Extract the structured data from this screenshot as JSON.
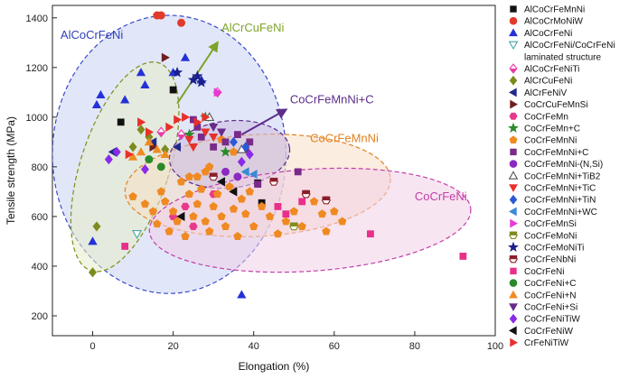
{
  "chart_data": {
    "type": "scatter",
    "xlabel": "Elongation (%)",
    "ylabel": "Tensile strength (MPa)",
    "xlim": [
      -10,
      100
    ],
    "ylim": [
      120,
      1450
    ],
    "xticks": [
      0,
      20,
      40,
      60,
      80,
      100
    ],
    "yticks": [
      200,
      400,
      600,
      800,
      1000,
      1200,
      1400
    ],
    "regions": [
      {
        "name": "AlCoCrFeNi",
        "label": "AlCoCrFeNi",
        "color": "#3b49c9",
        "fill": "#c9d4f2",
        "cx": 19,
        "cy": 850,
        "rx": 29,
        "ry": 560,
        "angle": 0
      },
      {
        "name": "AlCrCuFeNi",
        "label": "AlCrCuFeNi",
        "color": "#7b8f1a",
        "fill": "#e8ecc8",
        "cx": 8,
        "cy": 800,
        "rx": 11,
        "ry": 440,
        "angle": 18
      },
      {
        "name": "CoCrFeMnNi",
        "label": "CoCrFeMnNi",
        "color": "#e2801f",
        "fill": "#f8dfc4",
        "cx": 41,
        "cy": 725,
        "rx": 33,
        "ry": 205,
        "angle": -3
      },
      {
        "name": "CoCrFeMnNi+C",
        "label": "CoCrFeMnNi+C",
        "color": "#5d2c8a",
        "fill": "#cdbbe0",
        "cx": 34,
        "cy": 850,
        "rx": 15,
        "ry": 135,
        "angle": -6
      },
      {
        "name": "CoCrFeNi",
        "label": "CoCrFeNi",
        "color": "#c23fa8",
        "fill": "#f2cfe7",
        "cx": 54,
        "cy": 585,
        "rx": 40,
        "ry": 205,
        "angle": -4
      }
    ],
    "arrows": [
      {
        "label": "AlCrCuFeNi",
        "from": [
          21,
          1055
        ],
        "to": [
          31,
          1300
        ],
        "color": "#7ea32a"
      },
      {
        "label": "CoCrFeMnNi+C",
        "from": [
          37,
          930
        ],
        "to": [
          48,
          1030
        ],
        "color": "#5d2c8a"
      }
    ],
    "region_labels": [
      {
        "text": "AlCoCrFeNi",
        "x": -8,
        "y": 1315,
        "color": "#2f3fb8"
      },
      {
        "text": "AlCrCuFeNi",
        "x": 32,
        "y": 1345,
        "color": "#7ea32a"
      },
      {
        "text": "CoCrFeMnNi+C",
        "x": 49,
        "y": 1055,
        "color": "#5d2c8a"
      },
      {
        "text": "CoCrFeMnNi",
        "x": 54,
        "y": 900,
        "color": "#e2801f"
      },
      {
        "text": "CoCrFeNi",
        "x": 80,
        "y": 665,
        "color": "#c23fa8"
      }
    ],
    "series": [
      {
        "name": "AlCoCrFeMnNi",
        "marker": "square",
        "color": "#111111",
        "points": [
          [
            7,
            980
          ],
          [
            20,
            1110
          ],
          [
            41,
            735
          ],
          [
            42,
            655
          ]
        ]
      },
      {
        "name": "AlCoCrMoNiW",
        "marker": "circle",
        "color": "#e23a2a",
        "points": [
          [
            16,
            1410
          ],
          [
            17,
            1410
          ],
          [
            22,
            1380
          ]
        ]
      },
      {
        "name": "AlCoCrFeNi",
        "marker": "triangle-up",
        "color": "#2431d6",
        "points": [
          [
            0,
            500
          ],
          [
            1,
            1050
          ],
          [
            8,
            1070
          ],
          [
            12,
            1180
          ],
          [
            23,
            1240
          ],
          [
            20,
            1180
          ],
          [
            37,
            285
          ],
          [
            13,
            1130
          ],
          [
            2,
            1090
          ],
          [
            27,
            1150
          ]
        ]
      },
      {
        "name": "AlCoCrFeNi/CoCrFeNi laminated structure",
        "marker": "triangle-down-open",
        "color": "#49a6a6",
        "points": [
          [
            11,
            530
          ]
        ]
      },
      {
        "name": "AlCoCrFeNiTi",
        "marker": "diamond-half",
        "color": "#e83aa8",
        "points": [
          [
            31,
            1100
          ],
          [
            17,
            940
          ],
          [
            22,
            930
          ]
        ]
      },
      {
        "name": "AlCrCuFeNi",
        "marker": "diamond",
        "color": "#7e8a1e",
        "points": [
          [
            0,
            375
          ],
          [
            1,
            560
          ],
          [
            12,
            950
          ],
          [
            14,
            920
          ],
          [
            10,
            880
          ],
          [
            18,
            870
          ]
        ]
      },
      {
        "name": "AlCrFeNiV",
        "marker": "triangle-left",
        "color": "#1f2a8a",
        "points": [
          [
            5,
            860
          ],
          [
            15,
            900
          ],
          [
            21,
            880
          ]
        ]
      },
      {
        "name": "CoCrCuFeMnSi",
        "marker": "triangle-right",
        "color": "#6e1f1f",
        "points": [
          [
            18,
            1240
          ],
          [
            15,
            880
          ]
        ]
      },
      {
        "name": "CoCrFeMn",
        "marker": "hexagon",
        "color": "#e83a8a",
        "points": [
          [
            20,
            600
          ],
          [
            23,
            640
          ],
          [
            30,
            690
          ],
          [
            25,
            560
          ]
        ]
      },
      {
        "name": "CoCrFeMn+C",
        "marker": "star",
        "color": "#2a8a2a",
        "points": [
          [
            28,
            1000
          ],
          [
            24,
            930
          ],
          [
            33,
            860
          ]
        ]
      },
      {
        "name": "CoCrFeMnNi",
        "marker": "pentagon",
        "color": "#ef8a22",
        "points": [
          [
            10,
            680
          ],
          [
            13,
            650
          ],
          [
            15,
            620
          ],
          [
            16,
            570
          ],
          [
            17,
            700
          ],
          [
            18,
            660
          ],
          [
            19,
            540
          ],
          [
            20,
            620
          ],
          [
            21,
            580
          ],
          [
            22,
            740
          ],
          [
            23,
            520
          ],
          [
            24,
            690
          ],
          [
            25,
            600
          ],
          [
            26,
            650
          ],
          [
            27,
            710
          ],
          [
            28,
            580
          ],
          [
            29,
            540
          ],
          [
            30,
            640
          ],
          [
            31,
            690
          ],
          [
            32,
            600
          ],
          [
            33,
            560
          ],
          [
            34,
            720
          ],
          [
            35,
            630
          ],
          [
            36,
            520
          ],
          [
            37,
            670
          ],
          [
            38,
            610
          ],
          [
            39,
            700
          ],
          [
            40,
            560
          ],
          [
            42,
            640
          ],
          [
            44,
            600
          ],
          [
            46,
            530
          ],
          [
            48,
            580
          ],
          [
            50,
            620
          ],
          [
            52,
            560
          ],
          [
            55,
            660
          ],
          [
            57,
            610
          ],
          [
            58,
            540
          ],
          [
            60,
            620
          ],
          [
            62,
            580
          ],
          [
            28,
            780
          ],
          [
            29,
            800
          ],
          [
            26,
            760
          ],
          [
            24,
            760
          ],
          [
            32,
            910
          ],
          [
            35,
            860
          ]
        ]
      },
      {
        "name": "CoCrFeMnNi+C",
        "marker": "square",
        "color": "#7a2a8a",
        "points": [
          [
            25,
            990
          ],
          [
            26,
            960
          ],
          [
            27,
            920
          ],
          [
            33,
            900
          ],
          [
            36,
            930
          ],
          [
            38,
            870
          ],
          [
            39,
            900
          ],
          [
            41,
            730
          ],
          [
            51,
            780
          ],
          [
            30,
            880
          ]
        ]
      },
      {
        "name": "CoCrFeMnNi-(N,Si)",
        "marker": "circle",
        "color": "#8a2ac2",
        "points": [
          [
            33,
            780
          ],
          [
            36,
            760
          ]
        ]
      },
      {
        "name": "CoCrFeMnNi+TiB2",
        "marker": "triangle-up-open",
        "color": "#555555",
        "points": [
          [
            37,
            870
          ],
          [
            29,
            1000
          ]
        ]
      },
      {
        "name": "CoCrFeMnNi+TiC",
        "marker": "triangle-down",
        "color": "#e8302a",
        "points": [
          [
            24,
            910
          ],
          [
            28,
            940
          ],
          [
            30,
            920
          ],
          [
            25,
            880
          ]
        ]
      },
      {
        "name": "CoCrFeMnNi+TiN",
        "marker": "diamond",
        "color": "#2a5ad6",
        "points": [
          [
            35,
            900
          ],
          [
            38,
            880
          ]
        ]
      },
      {
        "name": "CoCrFeMnNi+WC",
        "marker": "triangle-left",
        "color": "#3a8ad6",
        "points": [
          [
            38,
            780
          ],
          [
            40,
            770
          ]
        ]
      },
      {
        "name": "CoCrFeMnSi",
        "marker": "triangle-right",
        "color": "#e83ad6",
        "points": [
          [
            31,
            1100
          ]
        ]
      },
      {
        "name": "CoCrFeMoNi",
        "marker": "hexagon-half",
        "color": "#7e8a1e",
        "points": [
          [
            50,
            560
          ]
        ]
      },
      {
        "name": "CoCrFeMoNiTi",
        "marker": "star",
        "color": "#1a1f8a",
        "points": [
          [
            21,
            1180
          ],
          [
            26,
            1165
          ],
          [
            25,
            1150
          ],
          [
            27,
            1140
          ]
        ]
      },
      {
        "name": "CoCrFeNbNi",
        "marker": "hexagon-half",
        "color": "#8a1f2a",
        "points": [
          [
            45,
            740
          ],
          [
            53,
            690
          ],
          [
            58,
            665
          ],
          [
            30,
            760
          ]
        ]
      },
      {
        "name": "CoCrFeNi",
        "marker": "square",
        "color": "#e8308a",
        "points": [
          [
            8,
            480
          ],
          [
            52,
            660
          ],
          [
            69,
            530
          ],
          [
            92,
            440
          ],
          [
            46,
            640
          ],
          [
            48,
            610
          ]
        ]
      },
      {
        "name": "CoCrFeNi+C",
        "marker": "circle",
        "color": "#2a8a2a",
        "points": [
          [
            17,
            800
          ],
          [
            14,
            830
          ]
        ]
      },
      {
        "name": "CoCrFeNi+N",
        "marker": "triangle-up",
        "color": "#ef8a22",
        "points": [
          [
            10,
            840
          ],
          [
            12,
            860
          ],
          [
            14,
            900
          ],
          [
            16,
            870
          ],
          [
            18,
            850
          ]
        ]
      },
      {
        "name": "CoCrFeNi+Si",
        "marker": "triangle-down",
        "color": "#6a2a8a",
        "points": [
          [
            30,
            960
          ],
          [
            32,
            940
          ]
        ]
      },
      {
        "name": "CoCrFeNiTiW",
        "marker": "diamond",
        "color": "#8a2ae8",
        "points": [
          [
            4,
            830
          ],
          [
            6,
            860
          ],
          [
            13,
            790
          ],
          [
            37,
            820
          ],
          [
            39,
            850
          ]
        ]
      },
      {
        "name": "CoCrFeNiW",
        "marker": "triangle-left",
        "color": "#111111",
        "points": [
          [
            22,
            600
          ],
          [
            32,
            740
          ],
          [
            35,
            700
          ]
        ]
      },
      {
        "name": "CrFeNiTiW",
        "marker": "triangle-right",
        "color": "#e8302a",
        "points": [
          [
            21,
            990
          ],
          [
            19,
            960
          ],
          [
            23,
            1000
          ],
          [
            26,
            980
          ],
          [
            28,
            1000
          ],
          [
            9,
            850
          ],
          [
            12,
            980
          ],
          [
            14,
            940
          ]
        ]
      }
    ]
  }
}
